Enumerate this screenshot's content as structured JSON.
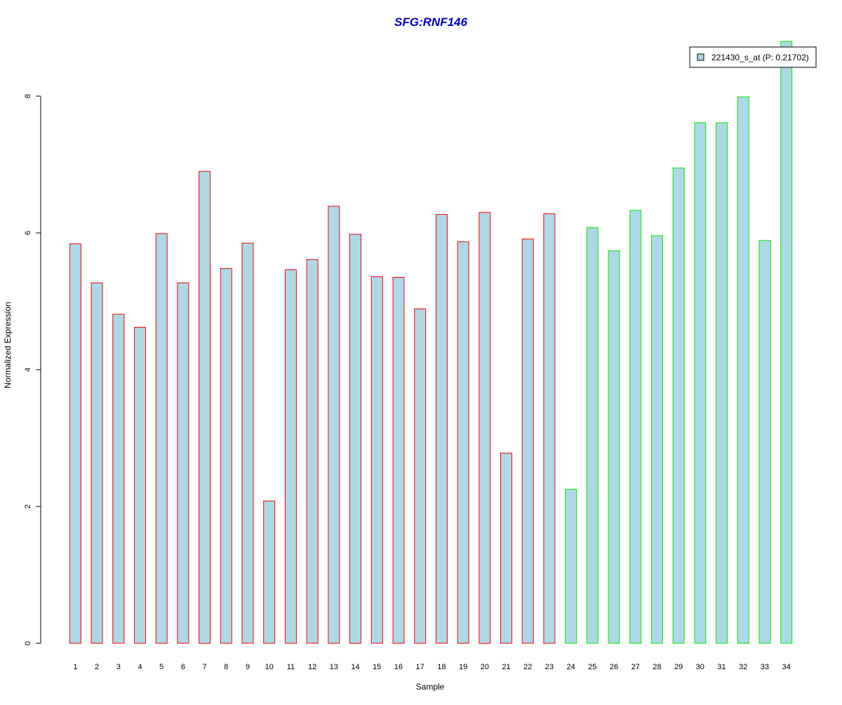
{
  "chart_data": {
    "type": "bar",
    "title": "SFG:RNF146",
    "xlabel": "Sample",
    "ylabel": "Normalized Expression",
    "ylim": [
      0,
      8.8
    ],
    "yticks": [
      0,
      2,
      4,
      6,
      8
    ],
    "categories": [
      "1",
      "2",
      "3",
      "4",
      "5",
      "6",
      "7",
      "8",
      "9",
      "10",
      "11",
      "12",
      "13",
      "14",
      "15",
      "16",
      "17",
      "18",
      "19",
      "20",
      "21",
      "22",
      "23",
      "24",
      "25",
      "26",
      "27",
      "28",
      "29",
      "30",
      "31",
      "32",
      "33",
      "34"
    ],
    "series": [
      {
        "name": "221430_s_at (P: 0.21702)",
        "values": [
          5.84,
          5.27,
          4.81,
          4.62,
          5.99,
          5.27,
          6.9,
          5.48,
          5.85,
          2.08,
          5.46,
          5.61,
          6.39,
          5.98,
          5.36,
          5.35,
          4.89,
          6.27,
          5.87,
          6.3,
          2.78,
          5.91,
          6.28,
          2.25,
          6.08,
          5.74,
          6.33,
          5.96,
          6.95,
          7.61,
          7.61,
          7.99,
          5.89,
          8.8
        ]
      }
    ],
    "groups": [
      {
        "from": 1,
        "to": 23,
        "border_color": "#ff0000"
      },
      {
        "from": 24,
        "to": 34,
        "border_color": "#00ee00"
      }
    ],
    "bar_fill": "#add8e6",
    "title_color": "#0000cc",
    "grid": false,
    "legend_position": "top-right"
  }
}
